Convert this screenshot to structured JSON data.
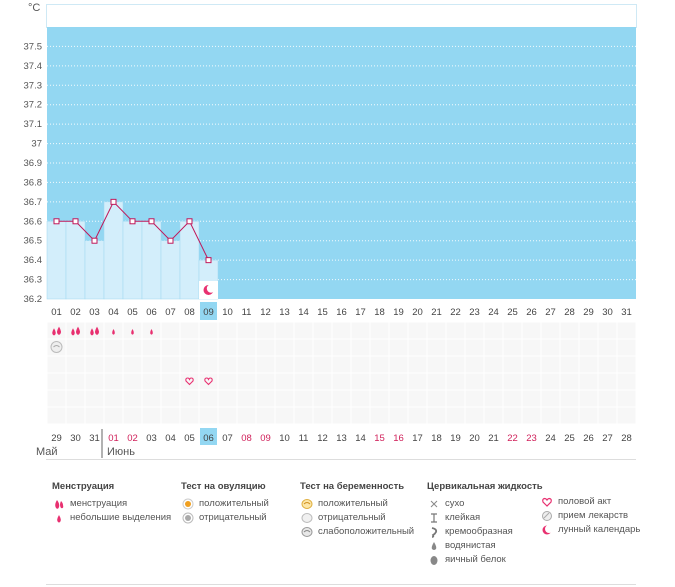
{
  "chart_data": {
    "type": "line",
    "ylabel": "°C",
    "ylim": [
      36.2,
      37.6
    ],
    "yticks": [
      "37.5",
      "37.4",
      "37.3",
      "37.2",
      "37.1",
      "37",
      "36.9",
      "36.8",
      "36.7",
      "36.6",
      "36.5",
      "36.4",
      "36.3",
      "36.2"
    ],
    "cycle_days": [
      "01",
      "02",
      "03",
      "04",
      "05",
      "06",
      "07",
      "08",
      "09",
      "10",
      "11",
      "12",
      "13",
      "14",
      "15",
      "16",
      "17",
      "18",
      "19",
      "20",
      "21",
      "22",
      "23",
      "24",
      "25",
      "26",
      "27",
      "28",
      "29",
      "30",
      "31"
    ],
    "highlight_cycle_day": "09",
    "series": [
      {
        "values": [
          36.6,
          36.6,
          36.5,
          36.7,
          36.6,
          36.6,
          36.5,
          36.6,
          36.4
        ]
      }
    ],
    "date_row": [
      "29",
      "30",
      "31",
      "01",
      "02",
      "03",
      "04",
      "05",
      "06",
      "07",
      "08",
      "09",
      "10",
      "11",
      "12",
      "13",
      "14",
      "15",
      "16",
      "17",
      "18",
      "19",
      "20",
      "21",
      "22",
      "23",
      "24",
      "25",
      "26",
      "27",
      "28"
    ],
    "date_red": [
      "01",
      "02",
      "08",
      "09",
      "15",
      "16",
      "22",
      "23"
    ],
    "highlight_date": "06",
    "grid": true
  },
  "marks": {
    "menstruation_heavy_days": [
      0,
      1,
      2
    ],
    "menstruation_light_days": [
      3,
      4,
      5
    ],
    "ovulation_negative_days": [
      0
    ],
    "intercourse_days": [
      7,
      8
    ],
    "lunar_day": 8
  },
  "months": {
    "may": "Май",
    "june": "Июнь"
  },
  "legend": {
    "menstruation": {
      "title": "Менструация",
      "items": [
        "менструация",
        "небольшие выделения"
      ]
    },
    "ovulation_test": {
      "title": "Тест на овуляцию",
      "items": [
        "положительный",
        "отрицательный"
      ]
    },
    "pregnancy_test": {
      "title": "Тест на беременность",
      "items": [
        "положительный",
        "отрицательный",
        "слабоположительный"
      ]
    },
    "cervical_fluid": {
      "title": "Цервикальная жидкость",
      "items": [
        "сухо",
        "клейкая",
        "кремообразная",
        "водянистая",
        "яичный белок"
      ]
    },
    "other": {
      "items": [
        "половой акт",
        "прием лекарств",
        "лунный календарь"
      ]
    }
  },
  "colors": {
    "plot_bg": "#93d7f2",
    "bar_fill": "#d3eefb",
    "line": "#c0185a",
    "red_text": "#d0205a",
    "highlight": "#93d7f2",
    "drop": "#e83070"
  }
}
